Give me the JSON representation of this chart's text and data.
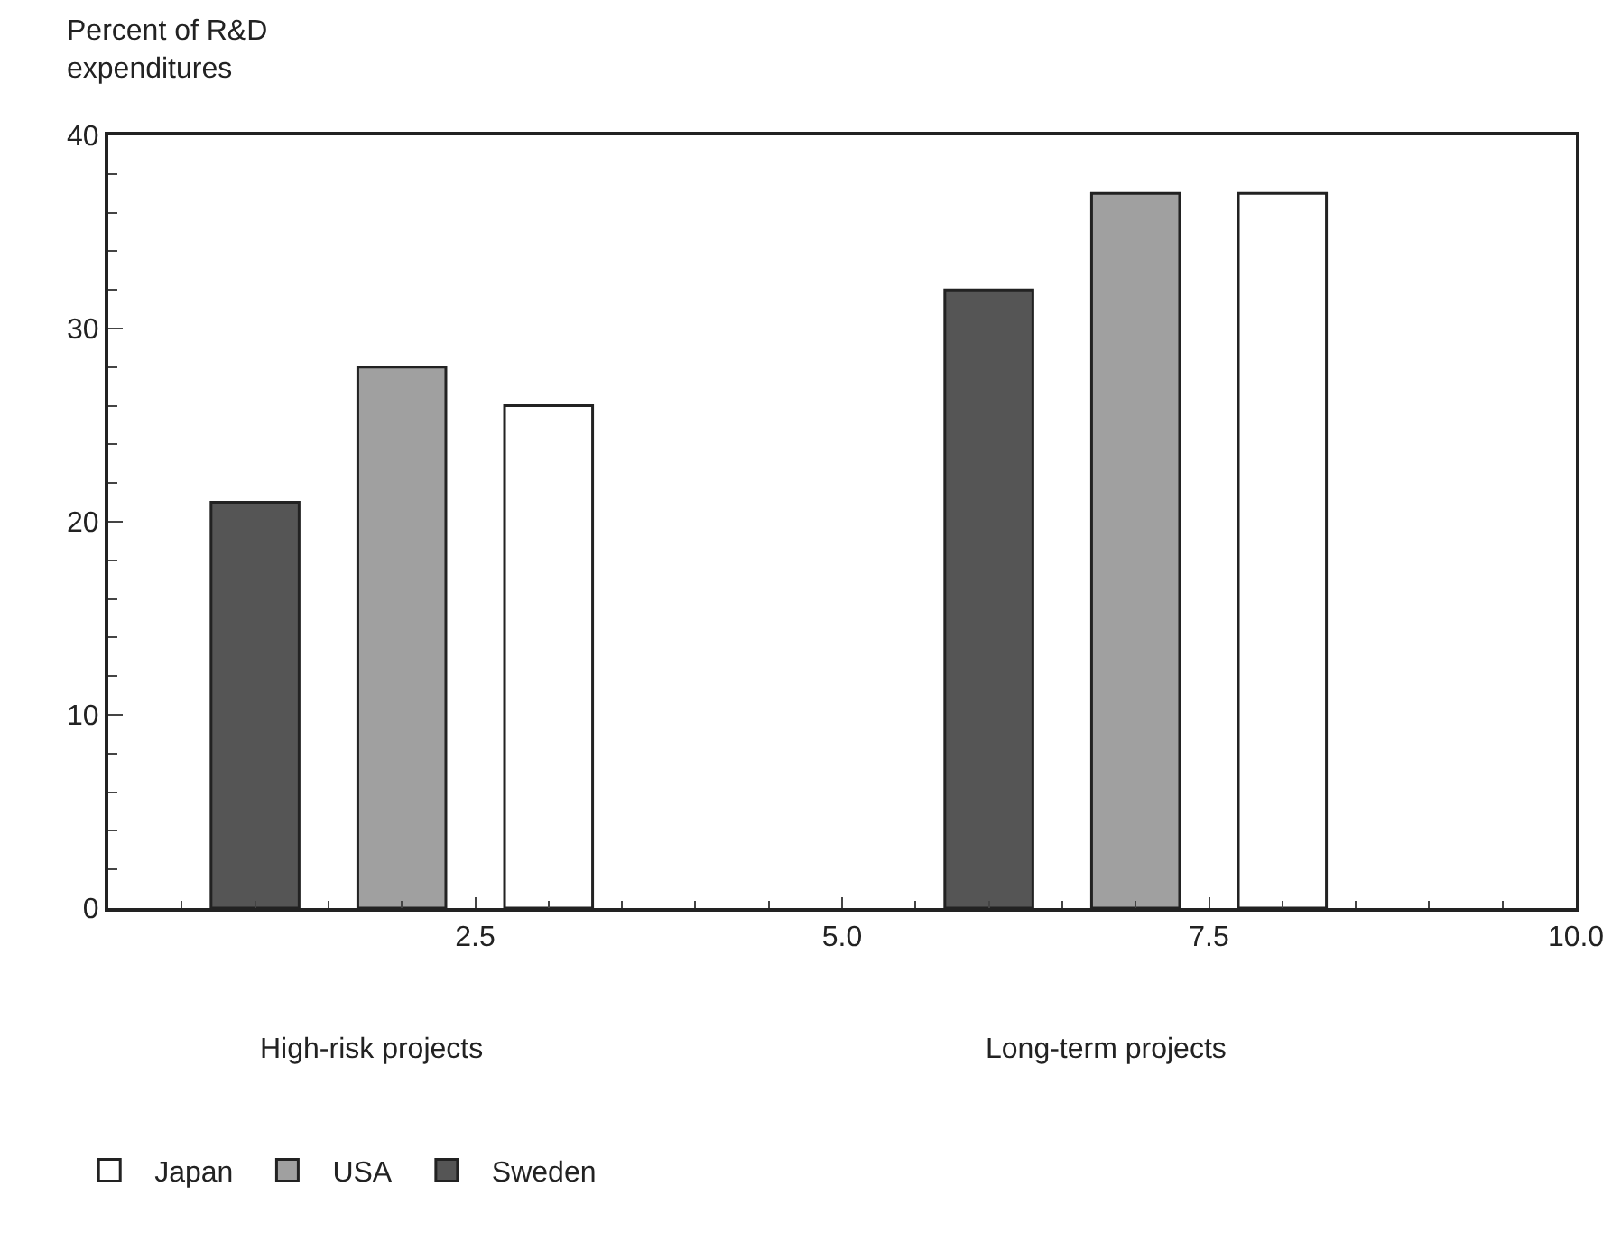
{
  "chart_data": {
    "type": "bar",
    "ylabel": "Percent of R&D\nexpenditures",
    "series": [
      {
        "name": "Japan",
        "color": "#ffffff",
        "x": [
          3,
          8
        ],
        "values": [
          26,
          37
        ]
      },
      {
        "name": "USA",
        "color": "#a0a0a0",
        "x": [
          2,
          7
        ],
        "values": [
          28,
          37
        ]
      },
      {
        "name": "Sweden",
        "color": "#555555",
        "x": [
          1,
          6
        ],
        "values": [
          21,
          32
        ]
      }
    ],
    "xlim": [
      0,
      10
    ],
    "xticks": [
      2.5,
      {
        "value": 5,
        "label": "5.0"
      },
      7.5,
      {
        "value": 10,
        "label": "10.0"
      }
    ],
    "ylim": [
      0,
      40
    ],
    "yticks": [
      0,
      10,
      20,
      30,
      40
    ],
    "annotations": [
      "High-risk projects",
      "Long-term projects"
    ],
    "grid": false,
    "legend": "bottom left"
  }
}
